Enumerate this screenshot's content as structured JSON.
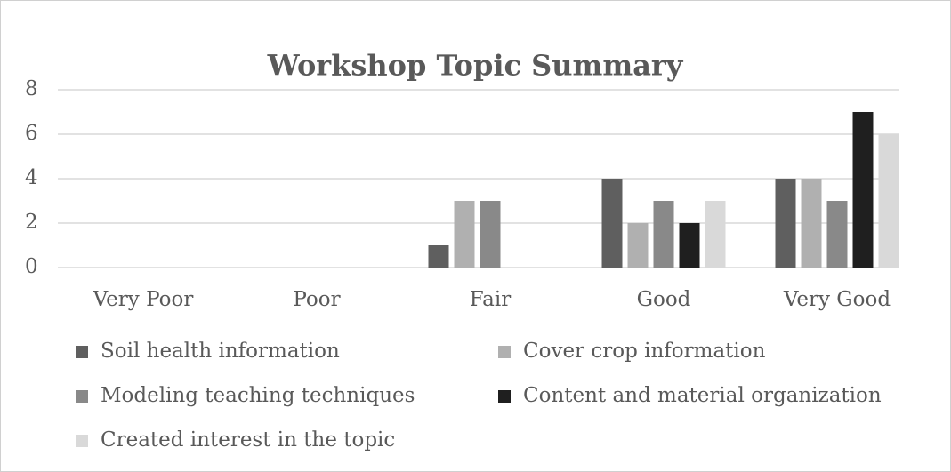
{
  "chart_data": {
    "type": "bar",
    "title": "Workshop Topic Summary",
    "categories": [
      "Very Poor",
      "Poor",
      "Fair",
      "Good",
      "Very Good"
    ],
    "series": [
      {
        "name": "Soil health information",
        "color": "#5f5f5f",
        "values": [
          0,
          0,
          1,
          4,
          4
        ]
      },
      {
        "name": "Cover crop information",
        "color": "#b0b0b0",
        "values": [
          0,
          0,
          3,
          2,
          4
        ]
      },
      {
        "name": "Modeling teaching techniques",
        "color": "#898989",
        "values": [
          0,
          0,
          3,
          3,
          3
        ]
      },
      {
        "name": "Content and material organization",
        "color": "#1f1f1f",
        "values": [
          0,
          0,
          0,
          2,
          7
        ]
      },
      {
        "name": "Created interest in the topic",
        "color": "#d9d9d9",
        "values": [
          0,
          0,
          0,
          3,
          6
        ]
      }
    ],
    "ylim": [
      0,
      8
    ],
    "yticks": [
      0,
      2,
      4,
      6,
      8
    ],
    "grid": true,
    "legend": "bottom"
  }
}
